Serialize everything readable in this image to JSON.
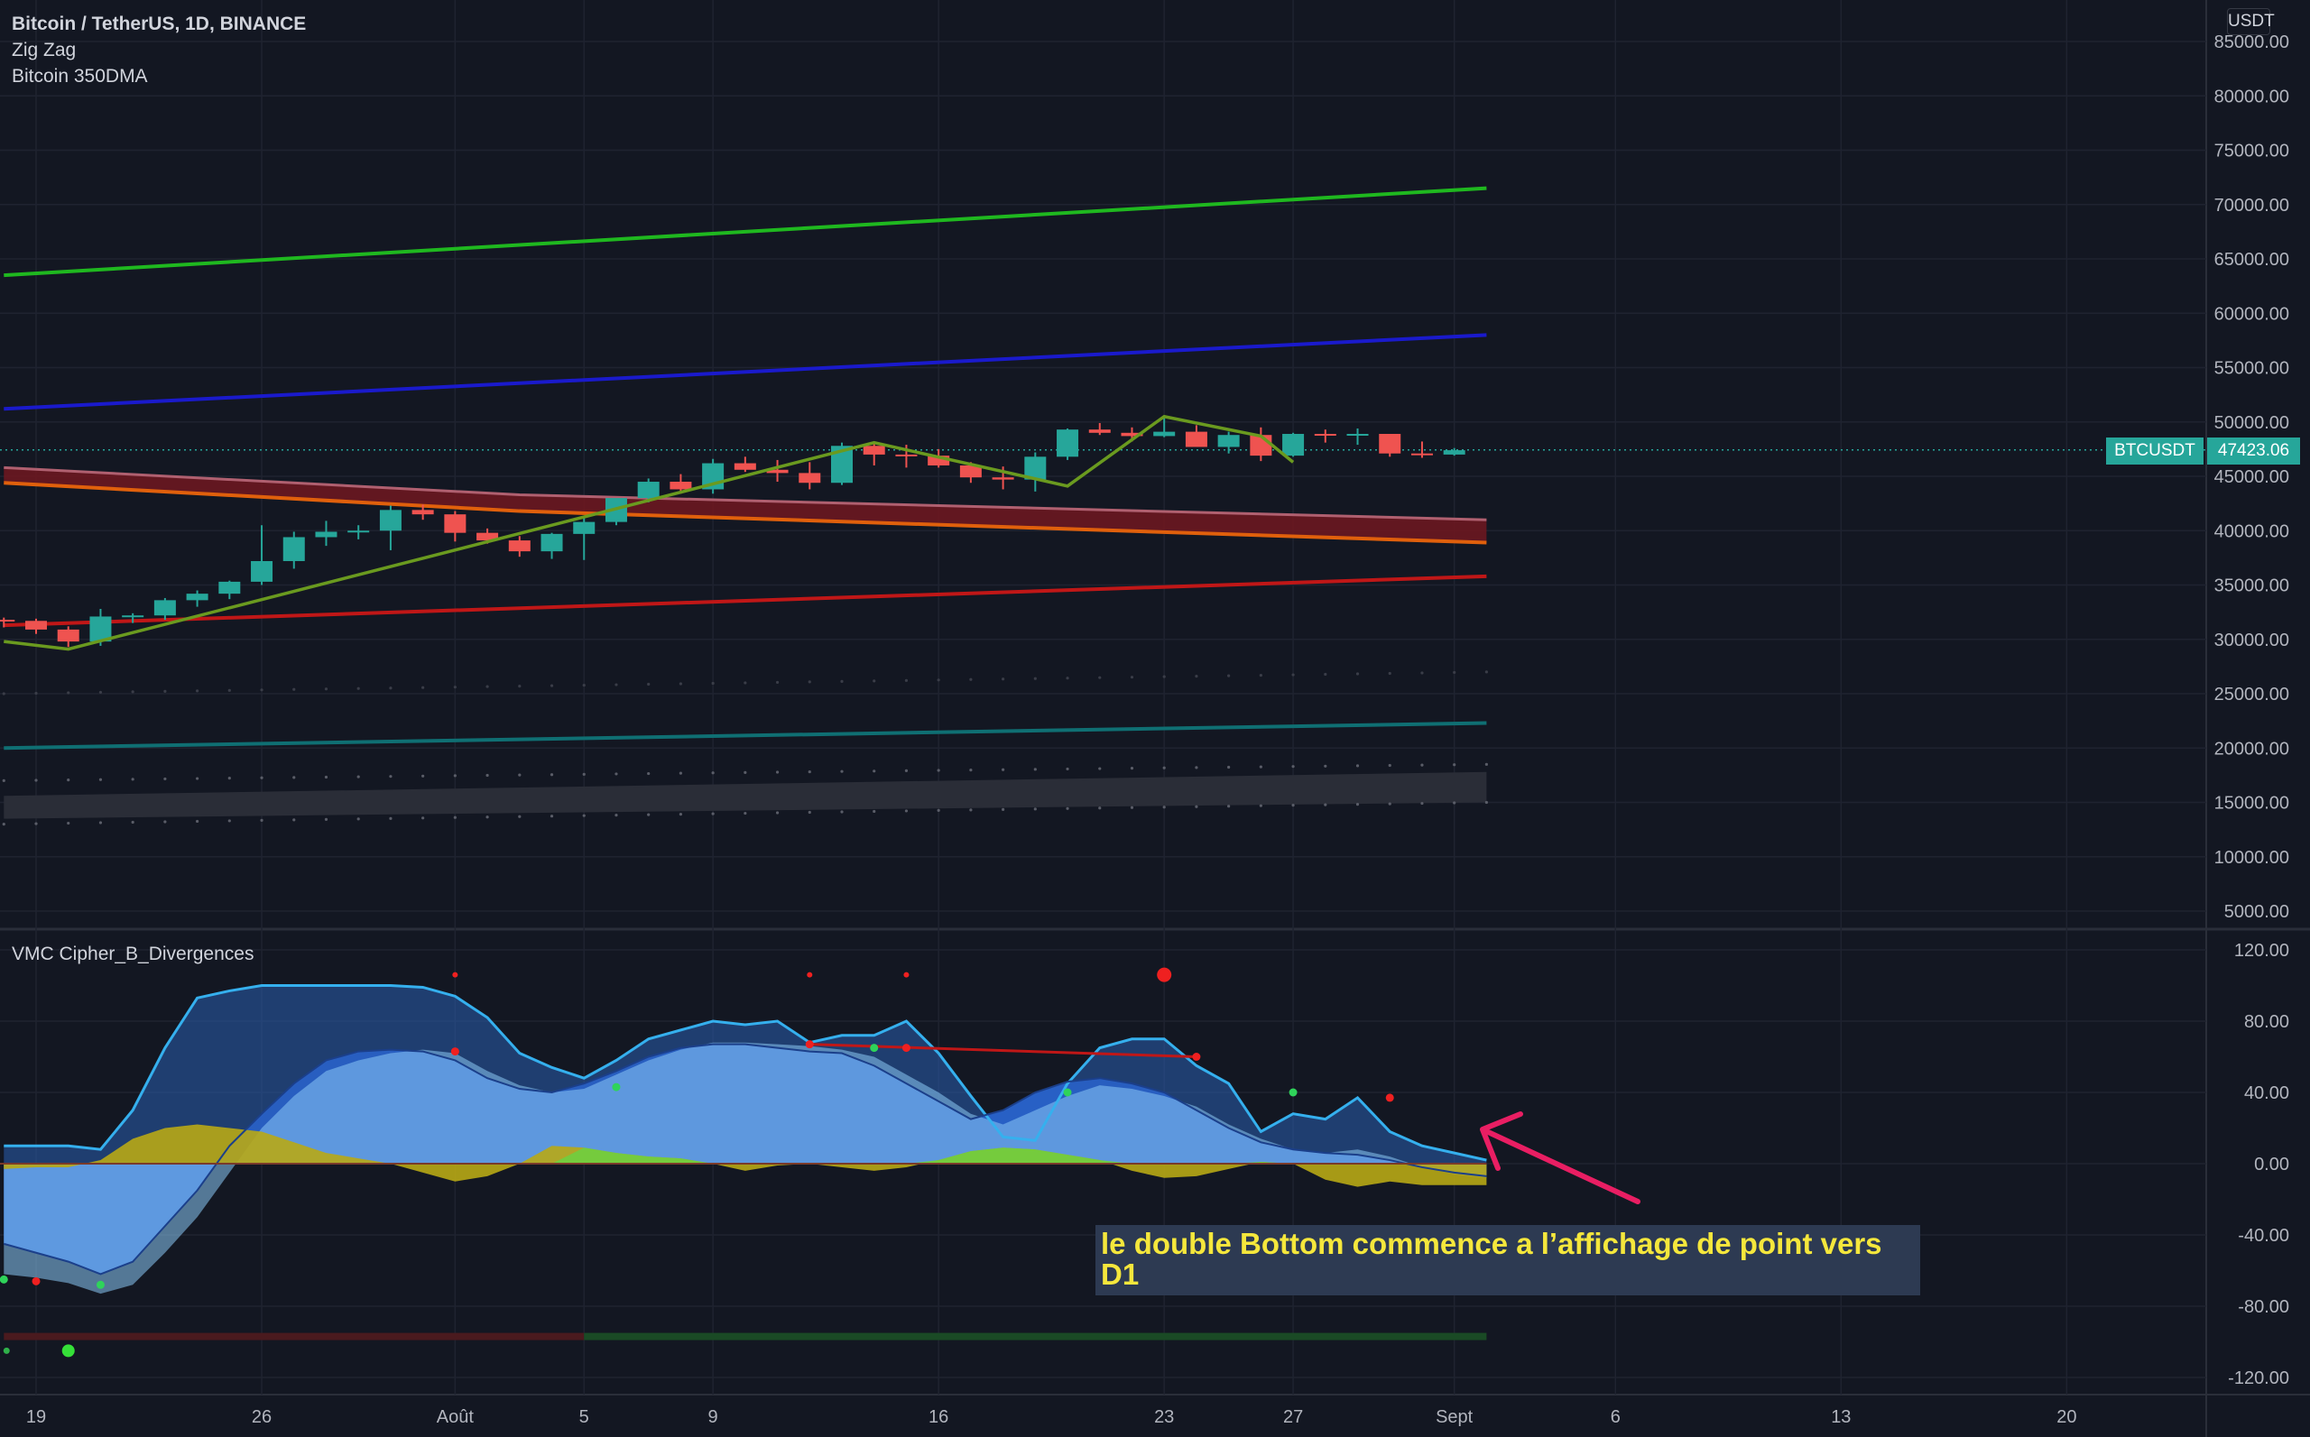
{
  "header": {
    "symbol_title": "Bitcoin / TetherUS, 1D, BINANCE",
    "indicator_1": "Zig Zag",
    "indicator_2": "Bitcoin 350DMA",
    "currency": "USDT"
  },
  "price_tag": {
    "symbol": "BTCUSDT",
    "value": "47423.06"
  },
  "oscillator": {
    "title": "VMC Cipher_B_Divergences"
  },
  "annotation": {
    "text": "le double Bottom commence a l’affichage de point vers D1"
  },
  "colors": {
    "background": "#131722",
    "up": "#26a69a",
    "down": "#ef5350",
    "ma_green": "#1fb81f",
    "ma_blue": "#1a1acc",
    "ma_red": "#c01717",
    "ma_orange": "#e0600c",
    "band_fill": "#6b1720",
    "zigzag": "#6a9a1f",
    "teal_line": "#0f6f73",
    "wave_light": "#8ac8f5",
    "wave_dark": "#2962c9",
    "wave_line": "#35b0ee",
    "money_flow_yellow": "#b8a815",
    "money_flow_green": "#6fcf3f",
    "arrow": "#e91e63"
  },
  "chart_data": [
    {
      "type": "candlestick",
      "title": "Bitcoin / TetherUS, 1D, BINANCE",
      "ylabel": "USDT",
      "ylim": [
        3000,
        88000
      ],
      "y_ticks": [
        "5000.00",
        "10000.00",
        "15000.00",
        "20000.00",
        "25000.00",
        "30000.00",
        "35000.00",
        "40000.00",
        "45000.00",
        "50000.00",
        "55000.00",
        "60000.00",
        "65000.00",
        "70000.00",
        "75000.00",
        "80000.00",
        "85000.00"
      ],
      "x_ticks": [
        "19",
        "26",
        "Août",
        "5",
        "9",
        "16",
        "23",
        "27",
        "Sept",
        "6",
        "13",
        "20"
      ],
      "x_tick_days": [
        0,
        7,
        13,
        17,
        21,
        28,
        35,
        39,
        44,
        49,
        56,
        63
      ],
      "candles_ohlc": [
        [
          31800,
          32000,
          31100,
          31700
        ],
        [
          31700,
          31900,
          30500,
          30900
        ],
        [
          30900,
          31200,
          29300,
          29800
        ],
        [
          29800,
          32800,
          29400,
          32100
        ],
        [
          32100,
          32400,
          31500,
          32200
        ],
        [
          32200,
          33800,
          31800,
          33600
        ],
        [
          33600,
          34500,
          33000,
          34200
        ],
        [
          34200,
          35400,
          33700,
          35300
        ],
        [
          35300,
          40500,
          35000,
          37200
        ],
        [
          37200,
          39900,
          36500,
          39400
        ],
        [
          39400,
          40900,
          38600,
          39900
        ],
        [
          39900,
          40500,
          39200,
          40000
        ],
        [
          40000,
          42300,
          38200,
          41900
        ],
        [
          41900,
          42400,
          41000,
          41500
        ],
        [
          41500,
          41800,
          39000,
          39800
        ],
        [
          39800,
          40200,
          38800,
          39100
        ],
        [
          39100,
          39500,
          37600,
          38100
        ],
        [
          38100,
          39800,
          37400,
          39700
        ],
        [
          39700,
          41200,
          37300,
          40800
        ],
        [
          40800,
          42900,
          40500,
          43000
        ],
        [
          43000,
          44800,
          42600,
          44500
        ],
        [
          44500,
          45200,
          43400,
          43800
        ],
        [
          43800,
          46600,
          43400,
          46200
        ],
        [
          46200,
          46800,
          45400,
          45600
        ],
        [
          45600,
          46500,
          44500,
          45300
        ],
        [
          45300,
          46300,
          43800,
          44400
        ],
        [
          44400,
          48100,
          44200,
          47800
        ],
        [
          47800,
          48100,
          46000,
          47000
        ],
        [
          47000,
          47900,
          45800,
          46900
        ],
        [
          46900,
          47500,
          45800,
          46000
        ],
        [
          46000,
          46300,
          44400,
          44900
        ],
        [
          44900,
          45900,
          43800,
          44700
        ],
        [
          44700,
          47200,
          43600,
          46800
        ],
        [
          46800,
          49400,
          46500,
          49300
        ],
        [
          49300,
          49900,
          48800,
          49000
        ],
        [
          49000,
          49500,
          48200,
          48700
        ],
        [
          48700,
          50400,
          48600,
          49100
        ],
        [
          49100,
          49700,
          47900,
          47700
        ],
        [
          47700,
          49100,
          47100,
          48800
        ],
        [
          48800,
          49500,
          46400,
          46900
        ],
        [
          46900,
          49000,
          46800,
          48900
        ],
        [
          48900,
          49300,
          48100,
          48800
        ],
        [
          48800,
          49400,
          47900,
          48900
        ],
        [
          48900,
          48900,
          46800,
          47100
        ],
        [
          47100,
          48200,
          46700,
          47000
        ],
        [
          47000,
          47600,
          46900,
          47400
        ]
      ],
      "series": [
        {
          "name": "upper green",
          "x": [
            -1,
            45
          ],
          "values": [
            63500,
            71500
          ]
        },
        {
          "name": "blue",
          "x": [
            -1,
            45
          ],
          "values": [
            51200,
            58000
          ]
        },
        {
          "name": "band top",
          "x": [
            -1,
            15,
            45
          ],
          "values": [
            45800,
            43300,
            41000
          ]
        },
        {
          "name": "band bottom",
          "x": [
            -1,
            15,
            45
          ],
          "values": [
            44400,
            41800,
            38900
          ]
        },
        {
          "name": "red",
          "x": [
            -1,
            45
          ],
          "values": [
            31300,
            35800
          ]
        },
        {
          "name": "teal",
          "x": [
            -1,
            45
          ],
          "values": [
            20000,
            22300
          ]
        },
        {
          "name": "zigzag",
          "x": [
            -1,
            1,
            26,
            32,
            35,
            38,
            39
          ],
          "values": [
            29800,
            29100,
            48100,
            44100,
            50500,
            48700,
            46300
          ]
        }
      ],
      "gray_band": {
        "x": [
          -1,
          45
        ],
        "top": [
          15600,
          17800
        ],
        "bottom": [
          13500,
          15000
        ]
      }
    },
    {
      "type": "area",
      "title": "VMC Cipher_B_Divergences",
      "ylim": [
        -128,
        128
      ],
      "y_ticks": [
        "120.00",
        "80.00",
        "40.00",
        "0.00",
        "-40.00",
        "-80.00",
        "-120.00"
      ],
      "x": [
        -1,
        0,
        1,
        2,
        3,
        4,
        5,
        6,
        7,
        8,
        9,
        10,
        11,
        12,
        13,
        14,
        15,
        16,
        17,
        18,
        19,
        20,
        21,
        22,
        23,
        24,
        25,
        26,
        27,
        28,
        29,
        30,
        31,
        32,
        33,
        34,
        35,
        36,
        37,
        38,
        39,
        40,
        41,
        42,
        43,
        44,
        45
      ],
      "series": [
        {
          "name": "wt1",
          "values": [
            -62,
            -64,
            -67,
            -73,
            -68,
            -50,
            -30,
            -5,
            20,
            38,
            52,
            58,
            62,
            64,
            62,
            52,
            44,
            40,
            42,
            50,
            58,
            64,
            68,
            68,
            67,
            66,
            64,
            60,
            50,
            40,
            28,
            22,
            30,
            38,
            44,
            42,
            38,
            32,
            22,
            14,
            8,
            6,
            8,
            4,
            -2,
            -6,
            -8
          ]
        },
        {
          "name": "wt2",
          "values": [
            -45,
            -50,
            -55,
            -62,
            -55,
            -35,
            -15,
            10,
            28,
            45,
            58,
            63,
            64,
            63,
            58,
            48,
            42,
            40,
            45,
            52,
            60,
            65,
            67,
            67,
            65,
            63,
            62,
            55,
            45,
            35,
            25,
            30,
            40,
            46,
            48,
            45,
            40,
            30,
            20,
            12,
            8,
            6,
            5,
            2,
            -2,
            -5,
            -7
          ]
        },
        {
          "name": "upper wave",
          "values": [
            10,
            10,
            10,
            8,
            30,
            65,
            93,
            97,
            100,
            100,
            100,
            100,
            100,
            99,
            94,
            82,
            62,
            54,
            48,
            58,
            70,
            75,
            80,
            78,
            80,
            68,
            72,
            72,
            80,
            62,
            38,
            15,
            13,
            45,
            65,
            70,
            70,
            55,
            45,
            18,
            28,
            25,
            37,
            18,
            10,
            6,
            2
          ]
        },
        {
          "name": "money flow",
          "values": [
            -3,
            -2,
            -2,
            2,
            14,
            20,
            22,
            20,
            18,
            12,
            6,
            3,
            0,
            -5,
            -10,
            -7,
            0,
            10,
            9,
            6,
            4,
            3,
            0,
            -4,
            -1,
            0,
            -2,
            -4,
            -2,
            2,
            7,
            9,
            8,
            5,
            2,
            -4,
            -8,
            -7,
            -3,
            1,
            0,
            -9,
            -13,
            -10,
            -12,
            -12,
            -12
          ]
        }
      ],
      "red_dots": [
        [
          13,
          106
        ],
        [
          24,
          106
        ],
        [
          27,
          106
        ],
        [
          35,
          106
        ],
        [
          13,
          63
        ],
        [
          24,
          67
        ],
        [
          27,
          65
        ],
        [
          36,
          60
        ],
        [
          42,
          37
        ],
        [
          0,
          -66
        ]
      ],
      "green_dots": [
        [
          -1,
          -65
        ],
        [
          2,
          -68
        ],
        [
          18,
          43
        ],
        [
          26,
          65
        ],
        [
          32,
          40
        ],
        [
          39,
          40
        ]
      ],
      "signal_row": {
        "y": -97,
        "red_until": 17,
        "green_from": 17
      }
    }
  ]
}
